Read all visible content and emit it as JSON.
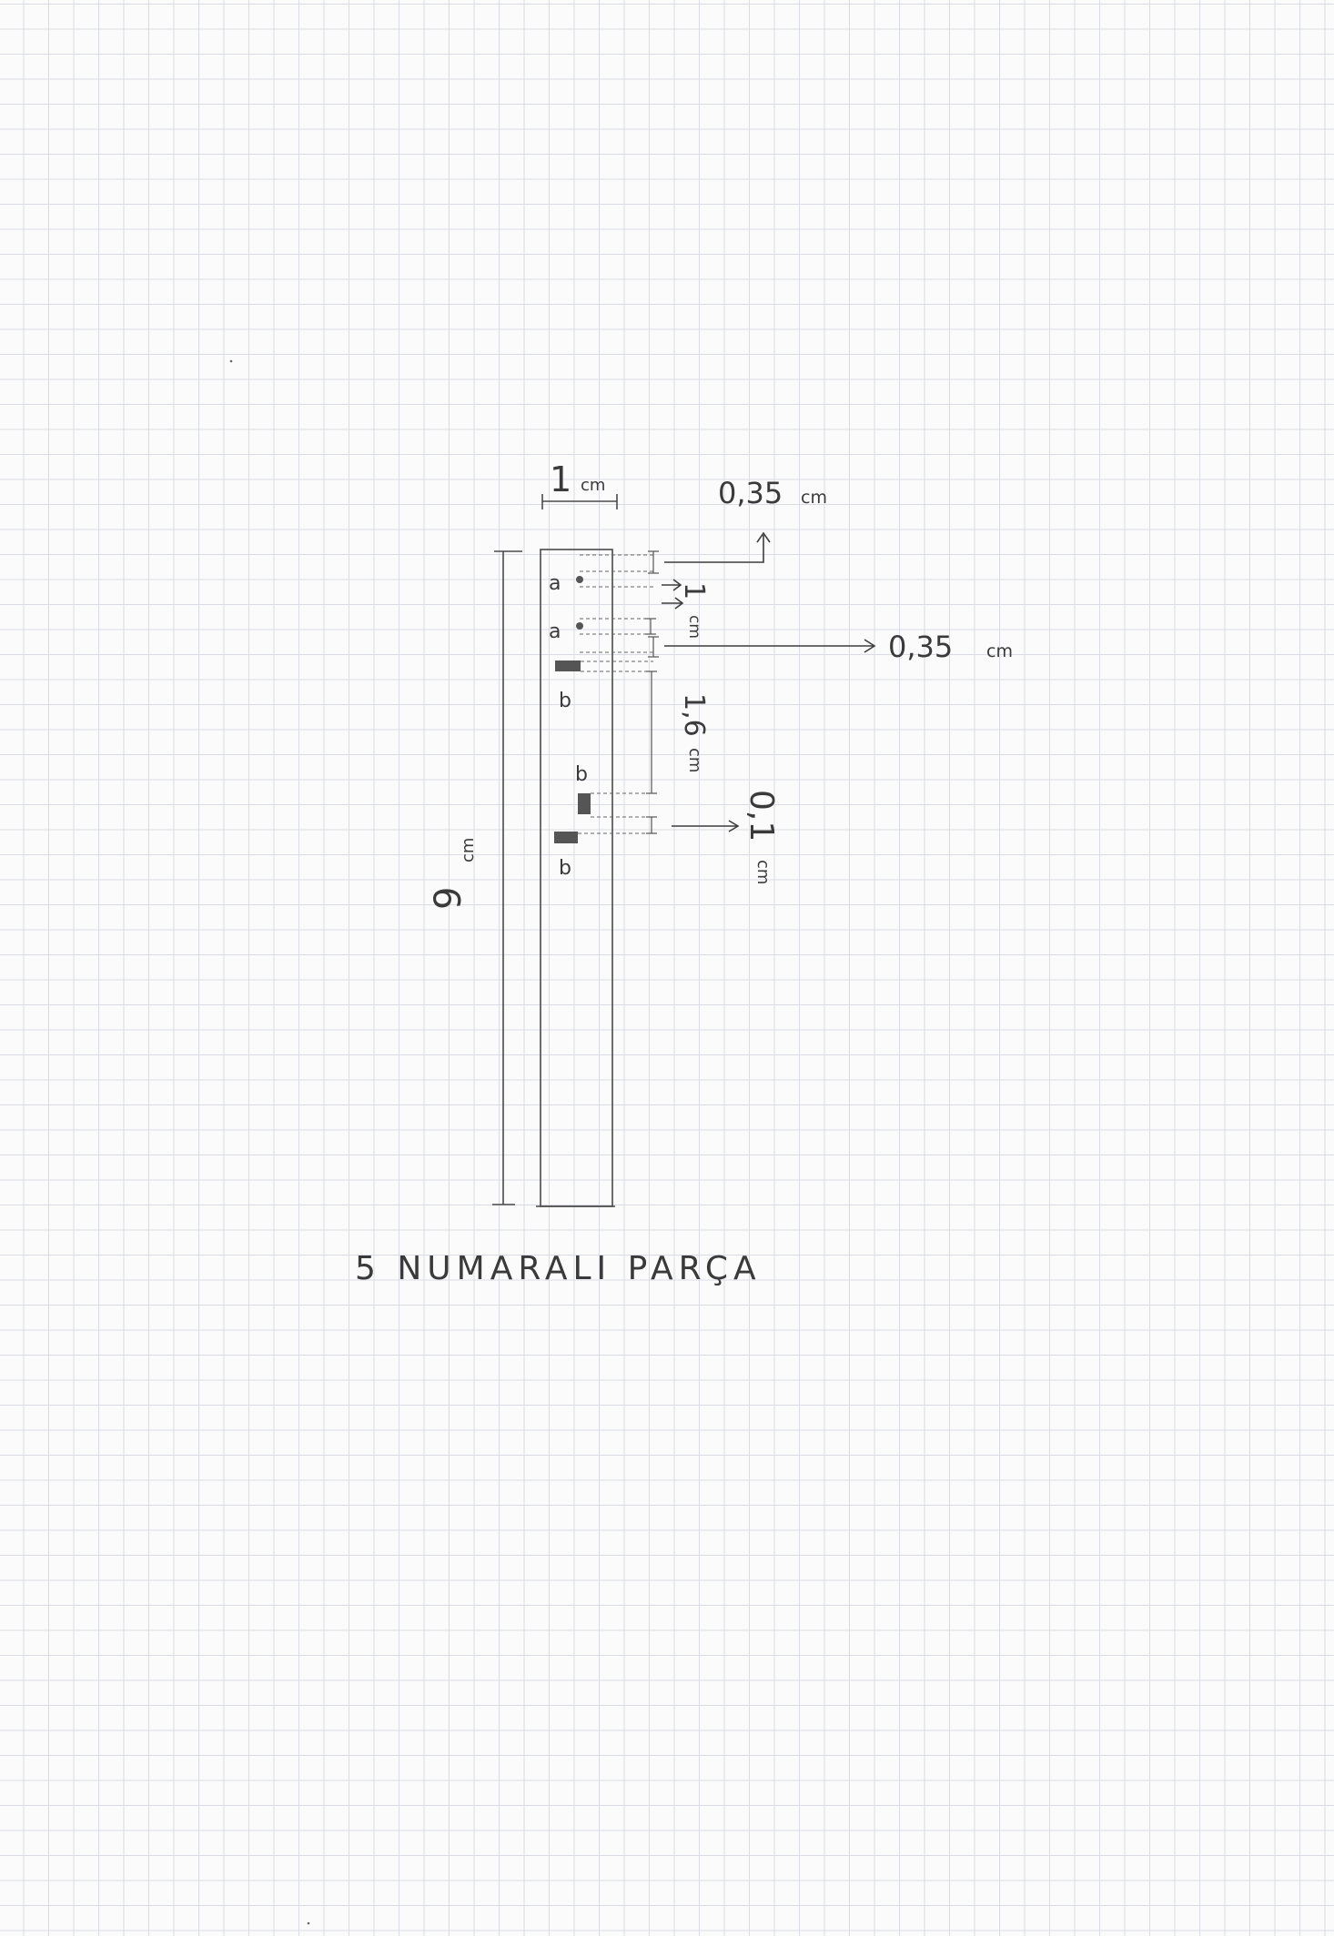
{
  "title": "5 NUMARALI PARÇA",
  "labels": {
    "width_value": "1",
    "width_unit": "cm",
    "height_value": "9",
    "height_unit": "cm",
    "top_gap_value": "0,35",
    "top_gap_unit": "cm",
    "a_spacing_value": "1",
    "a_spacing_unit": "cm",
    "mid_gap_value": "0,35",
    "mid_gap_unit": "cm",
    "b_gap_value": "1,6",
    "b_gap_unit": "cm",
    "small_gap_value": "0,1",
    "small_gap_unit": "cm"
  },
  "markers": {
    "a1": "a",
    "a2": "a",
    "b1": "b",
    "b2": "b",
    "b3": "b"
  }
}
